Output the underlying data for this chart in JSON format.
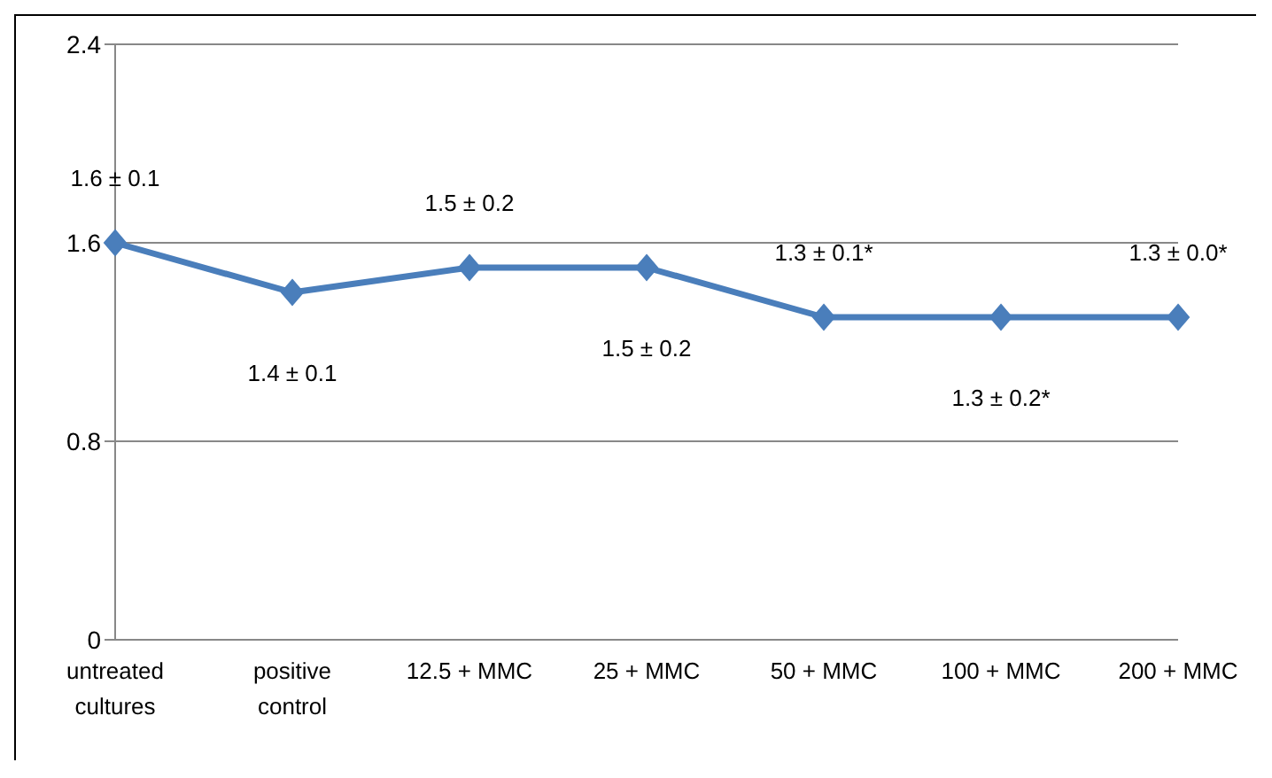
{
  "chart_data": {
    "type": "line",
    "categories": [
      "untreated cultures",
      "positive control",
      "12.5 + MMC",
      "25 + MMC",
      "50 + MMC",
      "100 + MMC",
      "200 + MMC"
    ],
    "series": [
      {
        "color": "#4a7ebb",
        "values": [
          1.6,
          1.4,
          1.5,
          1.5,
          1.3,
          1.3,
          1.3
        ],
        "value_labels": [
          "1.6 ± 0.1",
          "1.4 ± 0.1",
          "1.5 ± 0.2",
          "1.5 ± 0.2",
          "1.3 ± 0.1*",
          "1.3 ± 0.2*",
          "1.3 ± 0.0*"
        ]
      }
    ],
    "ylim": [
      0,
      2.4
    ],
    "yticks": [
      0,
      0.8,
      1.6,
      2.4
    ],
    "grid": "y",
    "legend": false,
    "marker": "diamond",
    "line_style": "solid"
  }
}
